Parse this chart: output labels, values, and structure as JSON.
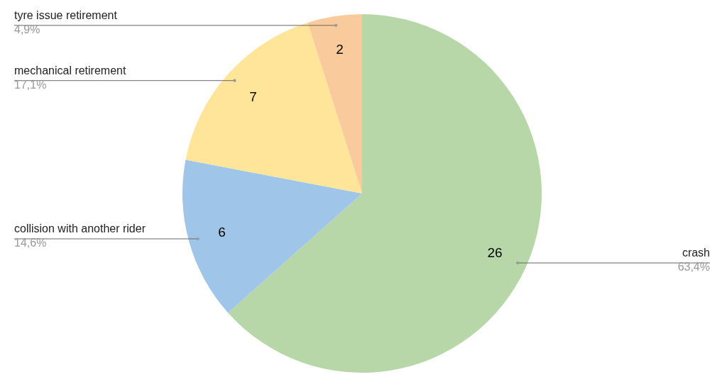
{
  "chart_data": {
    "type": "pie",
    "categories": [
      "crash",
      "collision with another rider",
      "mechanical retirement",
      "tyre issue retirement"
    ],
    "values": [
      63.4,
      14.6,
      17.1,
      4.9
    ],
    "colors": [
      "#b7d7a8",
      "#9fc5e8",
      "#ffe599",
      "#f9cb9c"
    ],
    "value_labels": [
      "63,4%",
      "14,6%",
      "17,1%",
      "4,9%"
    ],
    "annotations": [
      {
        "text": "26",
        "x": "crash"
      },
      {
        "text": "6",
        "x": "collision with another rider"
      },
      {
        "text": "7",
        "x": "mechanical retirement"
      },
      {
        "text": "2",
        "x": "tyre issue retirement"
      }
    ]
  }
}
